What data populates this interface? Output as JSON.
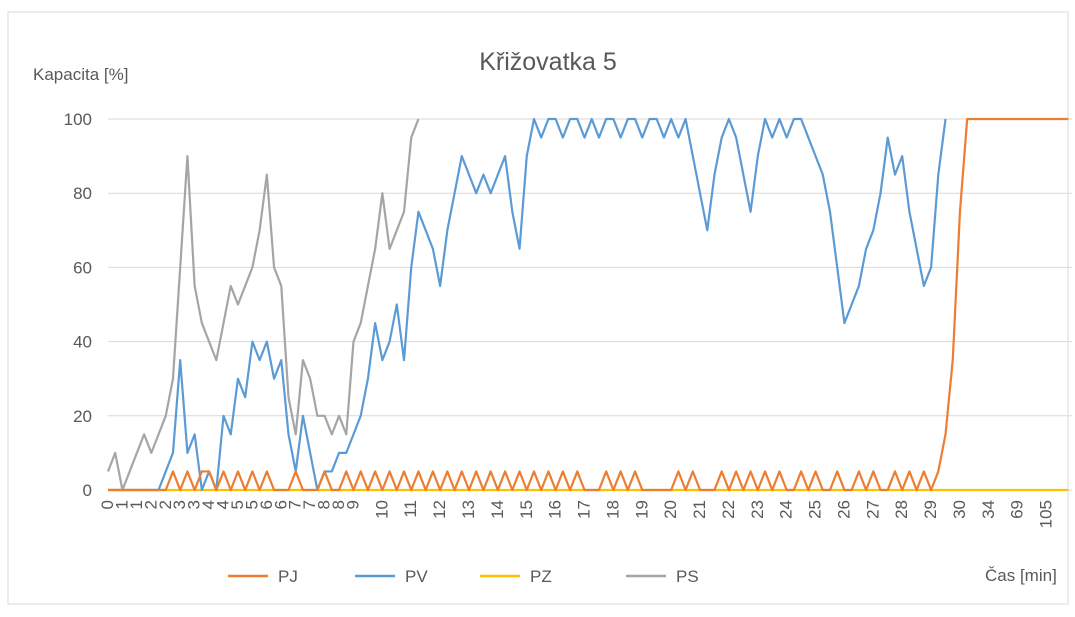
{
  "chart_data": {
    "type": "line",
    "title": "Křižovatka 5",
    "y_label": "Kapacita [%]",
    "x_label": "Čas [min]",
    "categories": [
      "0",
      null,
      "1",
      null,
      "1",
      null,
      "2",
      null,
      "2",
      null,
      "3",
      null,
      "3",
      null,
      "4",
      null,
      "4",
      null,
      "5",
      null,
      "5",
      null,
      "6",
      null,
      "6",
      null,
      "7",
      null,
      "7",
      null,
      "8",
      null,
      "8",
      null,
      "9",
      null,
      null,
      null,
      "10",
      null,
      null,
      null,
      "11",
      null,
      null,
      null,
      "12",
      null,
      null,
      null,
      "13",
      null,
      null,
      null,
      "14",
      null,
      null,
      null,
      "15",
      null,
      null,
      null,
      "16",
      null,
      null,
      null,
      "17",
      null,
      null,
      null,
      "18",
      null,
      null,
      null,
      "19",
      null,
      null,
      null,
      "20",
      null,
      null,
      null,
      "21",
      null,
      null,
      null,
      "22",
      null,
      null,
      null,
      "23",
      null,
      null,
      null,
      "24",
      null,
      null,
      null,
      "25",
      null,
      null,
      null,
      "26",
      null,
      null,
      null,
      "27",
      null,
      null,
      null,
      "28",
      null,
      null,
      null,
      "29",
      null,
      null,
      null,
      "30",
      null,
      null,
      null,
      "34",
      null,
      null,
      null,
      "69",
      null,
      null,
      null,
      "105",
      null,
      null,
      null
    ],
    "series": [
      {
        "name": "PJ",
        "color": "#ed7d31",
        "values": [
          0,
          0,
          0,
          0,
          0,
          0,
          0,
          0,
          0,
          5,
          0,
          5,
          0,
          5,
          5,
          0,
          5,
          0,
          5,
          0,
          5,
          0,
          5,
          0,
          0,
          0,
          5,
          0,
          0,
          0,
          5,
          0,
          0,
          5,
          0,
          5,
          0,
          5,
          0,
          5,
          0,
          5,
          0,
          5,
          0,
          5,
          0,
          5,
          0,
          5,
          0,
          5,
          0,
          5,
          0,
          5,
          0,
          5,
          0,
          5,
          0,
          5,
          0,
          5,
          0,
          5,
          0,
          0,
          0,
          5,
          0,
          5,
          0,
          5,
          0,
          0,
          0,
          0,
          0,
          5,
          0,
          5,
          0,
          0,
          0,
          5,
          0,
          5,
          0,
          5,
          0,
          5,
          0,
          5,
          0,
          0,
          5,
          0,
          5,
          0,
          0,
          5,
          0,
          0,
          5,
          0,
          5,
          0,
          0,
          5,
          0,
          5,
          0,
          5,
          0,
          5,
          15,
          35,
          75,
          100,
          100,
          100,
          100,
          100,
          100,
          100,
          100,
          100,
          100,
          100,
          100,
          100,
          100,
          100
        ]
      },
      {
        "name": "PV",
        "color": "#5b9bd5",
        "values": [
          0,
          0,
          0,
          0,
          0,
          0,
          0,
          0,
          5,
          10,
          35,
          10,
          15,
          0,
          5,
          0,
          20,
          15,
          30,
          25,
          40,
          35,
          40,
          30,
          35,
          15,
          5,
          20,
          10,
          0,
          5,
          5,
          10,
          10,
          15,
          20,
          30,
          45,
          35,
          40,
          50,
          35,
          60,
          75,
          70,
          65,
          55,
          70,
          80,
          90,
          85,
          80,
          85,
          80,
          85,
          90,
          75,
          65,
          90,
          100,
          95,
          100,
          100,
          95,
          100,
          100,
          95,
          100,
          95,
          100,
          100,
          95,
          100,
          100,
          95,
          100,
          100,
          95,
          100,
          95,
          100,
          90,
          80,
          70,
          85,
          95,
          100,
          95,
          85,
          75,
          90,
          100,
          95,
          100,
          95,
          100,
          100,
          95,
          90,
          85,
          75,
          60,
          45,
          50,
          55,
          65,
          70,
          80,
          95,
          85,
          90,
          75,
          65,
          55,
          60,
          85,
          100,
          null,
          null,
          null,
          null,
          null,
          null,
          null,
          null,
          null,
          null,
          null,
          null,
          null,
          null,
          null,
          null,
          null
        ]
      },
      {
        "name": "PZ",
        "color": "#ffc000",
        "values": [
          0,
          0,
          0,
          0,
          0,
          0,
          0,
          0,
          0,
          0,
          0,
          0,
          0,
          0,
          0,
          0,
          0,
          0,
          0,
          0,
          0,
          0,
          0,
          0,
          0,
          0,
          0,
          0,
          0,
          0,
          0,
          0,
          0,
          0,
          0,
          0,
          0,
          0,
          0,
          0,
          0,
          0,
          0,
          0,
          0,
          0,
          0,
          0,
          0,
          0,
          0,
          0,
          0,
          0,
          0,
          0,
          0,
          0,
          0,
          0,
          0,
          0,
          0,
          0,
          0,
          0,
          0,
          0,
          0,
          0,
          0,
          0,
          0,
          0,
          0,
          0,
          0,
          0,
          0,
          0,
          0,
          0,
          0,
          0,
          0,
          0,
          0,
          0,
          0,
          0,
          0,
          0,
          0,
          0,
          0,
          0,
          0,
          0,
          0,
          0,
          0,
          0,
          0,
          0,
          0,
          0,
          0,
          0,
          0,
          0,
          0,
          0,
          0,
          0,
          0,
          0,
          0,
          0,
          0,
          0,
          0,
          0,
          0,
          0,
          0,
          0,
          0,
          0,
          0,
          0,
          0,
          0,
          0,
          0
        ]
      },
      {
        "name": "PS",
        "color": "#a5a5a5",
        "values": [
          5,
          10,
          0,
          5,
          10,
          15,
          10,
          15,
          20,
          30,
          60,
          90,
          55,
          45,
          40,
          35,
          45,
          55,
          50,
          55,
          60,
          70,
          85,
          60,
          55,
          25,
          15,
          35,
          30,
          20,
          20,
          15,
          20,
          15,
          40,
          45,
          55,
          65,
          80,
          65,
          70,
          75,
          95,
          100,
          null,
          null,
          null,
          null,
          null,
          null,
          null,
          null,
          null,
          null,
          null,
          null,
          null,
          null,
          null,
          null,
          null,
          null,
          null,
          null,
          null,
          null,
          null,
          null,
          null,
          null,
          null,
          null,
          null,
          null,
          null,
          null,
          null,
          null,
          null,
          null,
          null,
          null,
          null,
          null,
          null,
          null,
          null,
          null,
          null,
          null,
          null,
          null,
          null,
          null,
          null,
          null,
          null,
          null,
          null,
          null,
          null,
          null,
          null,
          null,
          null,
          null,
          null,
          null,
          null,
          null,
          null,
          null,
          null,
          null,
          null,
          null,
          null,
          null,
          null,
          null,
          null,
          null,
          null,
          null,
          null,
          null,
          null,
          null,
          null,
          null,
          null,
          null,
          null,
          null
        ]
      }
    ],
    "ylim": [
      0,
      100
    ],
    "yticks": [
      0,
      20,
      40,
      60,
      80,
      100
    ],
    "grid": true,
    "legend": "bottom"
  }
}
